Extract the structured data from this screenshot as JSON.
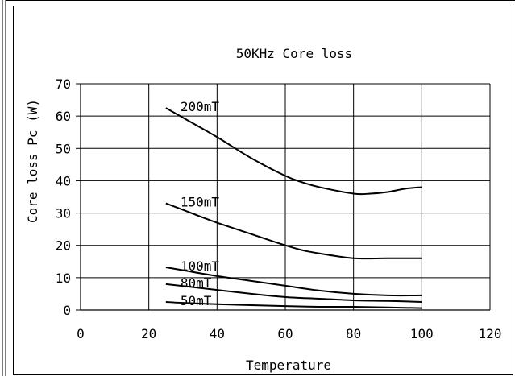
{
  "chart_data": {
    "type": "line",
    "title": "50KHz Core loss",
    "xlabel": "Temperature",
    "ylabel": "Core loss Pc (W)",
    "xlim": [
      0,
      120
    ],
    "ylim": [
      0,
      70
    ],
    "xticks": [
      0,
      20,
      40,
      60,
      80,
      100,
      120
    ],
    "yticks": [
      0,
      10,
      20,
      30,
      40,
      50,
      60,
      70
    ],
    "grid": true,
    "series": [
      {
        "name": "200mT",
        "x": [
          25,
          30,
          40,
          50,
          60,
          65,
          70,
          80,
          85,
          90,
          95,
          100
        ],
        "y": [
          62.5,
          59.5,
          53.5,
          47.0,
          41.5,
          39.5,
          38.0,
          36.0,
          36.0,
          36.5,
          37.5,
          38.0
        ]
      },
      {
        "name": "150mT",
        "x": [
          25,
          30,
          40,
          50,
          60,
          65,
          70,
          80,
          90,
          100
        ],
        "y": [
          33.0,
          31.0,
          27.0,
          23.5,
          20.0,
          18.5,
          17.5,
          16.0,
          16.0,
          16.0
        ]
      },
      {
        "name": "100mT",
        "x": [
          25,
          30,
          40,
          50,
          60,
          70,
          80,
          90,
          100
        ],
        "y": [
          13.2,
          12.3,
          10.5,
          9.0,
          7.5,
          6.0,
          5.0,
          4.5,
          4.5
        ]
      },
      {
        "name": "80mT",
        "x": [
          25,
          30,
          40,
          50,
          60,
          70,
          80,
          90,
          100
        ],
        "y": [
          8.0,
          7.4,
          6.2,
          5.0,
          4.0,
          3.5,
          3.0,
          2.8,
          2.5
        ]
      },
      {
        "name": "50mT",
        "x": [
          25,
          30,
          40,
          50,
          60,
          70,
          80,
          90,
          100
        ],
        "y": [
          2.5,
          2.2,
          1.8,
          1.5,
          1.2,
          1.0,
          1.0,
          0.8,
          0.6
        ]
      }
    ]
  }
}
